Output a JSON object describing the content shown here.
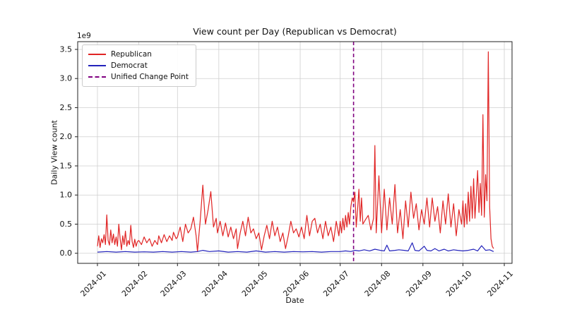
{
  "figure": {
    "title": "View count per Day (Republican vs Democrat)",
    "xlabel": "Date",
    "ylabel": "Daily View count",
    "offset_text": "1e9",
    "background_color": "#ffffff",
    "grid_color": "#cfcfcf",
    "spine_color": "#222222"
  },
  "legend": {
    "position": "upper left",
    "entries": [
      {
        "label": "Republican",
        "color": "#e02424",
        "dash": false
      },
      {
        "label": "Democrat",
        "color": "#2222bb",
        "dash": false
      },
      {
        "label": "Unified Change Point",
        "color": "#800080",
        "dash": true
      }
    ]
  },
  "chart_data": {
    "type": "line",
    "title": "View count per Day (Republican vs Democrat)",
    "xlabel": "Date",
    "ylabel": "Daily View count",
    "y_unit_multiplier": "1e9",
    "grid": true,
    "legend_position": "upper left",
    "x_epoch": "2024-01-01",
    "x_tick_labels": [
      "2024-01",
      "2024-02",
      "2024-03",
      "2024-04",
      "2024-05",
      "2024-06",
      "2024-07",
      "2024-08",
      "2024-09",
      "2024-10",
      "2024-11"
    ],
    "x_tick_days": [
      0,
      31,
      60,
      91,
      121,
      152,
      182,
      213,
      244,
      274,
      305
    ],
    "y_ticks": [
      0.0,
      0.5,
      1.0,
      1.5,
      2.0,
      2.5,
      3.0,
      3.5
    ],
    "xlim_days": [
      -14.8,
      310.8
    ],
    "ylim": [
      -0.173,
      3.633
    ],
    "change_point": {
      "label": "Unified Change Point",
      "date": "2024-07-11",
      "day": 192,
      "color": "#800080",
      "style": "dashed"
    },
    "series": [
      {
        "name": "Republican",
        "color": "#e02424",
        "points": [
          [
            0,
            0.12
          ],
          [
            1,
            0.3
          ],
          [
            2,
            0.1
          ],
          [
            3,
            0.25
          ],
          [
            4,
            0.18
          ],
          [
            5,
            0.32
          ],
          [
            6,
            0.15
          ],
          [
            7,
            0.66
          ],
          [
            8,
            0.22
          ],
          [
            9,
            0.14
          ],
          [
            10,
            0.4
          ],
          [
            11,
            0.18
          ],
          [
            12,
            0.33
          ],
          [
            13,
            0.15
          ],
          [
            14,
            0.28
          ],
          [
            15,
            0.12
          ],
          [
            16,
            0.5
          ],
          [
            17,
            0.25
          ],
          [
            18,
            0.06
          ],
          [
            19,
            0.3
          ],
          [
            20,
            0.15
          ],
          [
            21,
            0.38
          ],
          [
            22,
            0.12
          ],
          [
            23,
            0.22
          ],
          [
            24,
            0.15
          ],
          [
            25,
            0.48
          ],
          [
            26,
            0.2
          ],
          [
            27,
            0.1
          ],
          [
            28,
            0.24
          ],
          [
            29,
            0.12
          ],
          [
            30,
            0.2
          ],
          [
            31,
            0.22
          ],
          [
            33,
            0.15
          ],
          [
            35,
            0.28
          ],
          [
            37,
            0.18
          ],
          [
            39,
            0.25
          ],
          [
            41,
            0.12
          ],
          [
            43,
            0.22
          ],
          [
            45,
            0.15
          ],
          [
            46,
            0.3
          ],
          [
            48,
            0.18
          ],
          [
            50,
            0.32
          ],
          [
            52,
            0.2
          ],
          [
            54,
            0.3
          ],
          [
            56,
            0.22
          ],
          [
            57,
            0.36
          ],
          [
            59,
            0.25
          ],
          [
            60,
            0.28
          ],
          [
            62,
            0.45
          ],
          [
            64,
            0.2
          ],
          [
            66,
            0.5
          ],
          [
            68,
            0.35
          ],
          [
            70,
            0.42
          ],
          [
            72,
            0.62
          ],
          [
            74,
            0.3
          ],
          [
            75,
            0.03
          ],
          [
            77,
            0.55
          ],
          [
            79,
            1.17
          ],
          [
            81,
            0.5
          ],
          [
            83,
            0.75
          ],
          [
            85,
            1.06
          ],
          [
            87,
            0.45
          ],
          [
            89,
            0.6
          ],
          [
            90,
            0.35
          ],
          [
            92,
            0.55
          ],
          [
            94,
            0.3
          ],
          [
            96,
            0.52
          ],
          [
            98,
            0.28
          ],
          [
            100,
            0.45
          ],
          [
            102,
            0.25
          ],
          [
            104,
            0.42
          ],
          [
            105,
            0.08
          ],
          [
            107,
            0.35
          ],
          [
            109,
            0.55
          ],
          [
            111,
            0.3
          ],
          [
            113,
            0.62
          ],
          [
            115,
            0.35
          ],
          [
            117,
            0.42
          ],
          [
            119,
            0.25
          ],
          [
            121,
            0.35
          ],
          [
            123,
            0.06
          ],
          [
            125,
            0.3
          ],
          [
            127,
            0.48
          ],
          [
            129,
            0.25
          ],
          [
            131,
            0.55
          ],
          [
            133,
            0.3
          ],
          [
            135,
            0.45
          ],
          [
            137,
            0.2
          ],
          [
            139,
            0.35
          ],
          [
            141,
            0.08
          ],
          [
            143,
            0.3
          ],
          [
            145,
            0.55
          ],
          [
            147,
            0.35
          ],
          [
            149,
            0.42
          ],
          [
            151,
            0.28
          ],
          [
            153,
            0.45
          ],
          [
            155,
            0.25
          ],
          [
            157,
            0.65
          ],
          [
            159,
            0.3
          ],
          [
            161,
            0.55
          ],
          [
            163,
            0.6
          ],
          [
            165,
            0.35
          ],
          [
            167,
            0.5
          ],
          [
            169,
            0.25
          ],
          [
            171,
            0.55
          ],
          [
            173,
            0.3
          ],
          [
            175,
            0.45
          ],
          [
            177,
            0.2
          ],
          [
            179,
            0.55
          ],
          [
            181,
            0.3
          ],
          [
            182,
            0.55
          ],
          [
            183,
            0.35
          ],
          [
            184,
            0.6
          ],
          [
            185,
            0.4
          ],
          [
            186,
            0.65
          ],
          [
            187,
            0.45
          ],
          [
            188,
            0.7
          ],
          [
            189,
            0.5
          ],
          [
            190,
            0.8
          ],
          [
            191,
            0.95
          ],
          [
            192,
            0.88
          ],
          [
            193,
            1.05
          ],
          [
            194,
            0.45
          ],
          [
            195,
            0.75
          ],
          [
            196,
            1.1
          ],
          [
            197,
            0.55
          ],
          [
            198,
            0.95
          ],
          [
            199,
            0.5
          ],
          [
            201,
            0.58
          ],
          [
            203,
            0.65
          ],
          [
            205,
            0.4
          ],
          [
            207,
            0.6
          ],
          [
            208,
            1.85
          ],
          [
            209,
            0.35
          ],
          [
            211,
            1.33
          ],
          [
            213,
            0.35
          ],
          [
            215,
            1.1
          ],
          [
            217,
            0.4
          ],
          [
            219,
            0.95
          ],
          [
            221,
            0.5
          ],
          [
            223,
            1.18
          ],
          [
            225,
            0.35
          ],
          [
            227,
            0.75
          ],
          [
            229,
            0.25
          ],
          [
            231,
            0.9
          ],
          [
            233,
            0.45
          ],
          [
            235,
            1.05
          ],
          [
            237,
            0.6
          ],
          [
            239,
            0.85
          ],
          [
            241,
            0.4
          ],
          [
            243,
            0.75
          ],
          [
            245,
            0.5
          ],
          [
            247,
            0.95
          ],
          [
            249,
            0.45
          ],
          [
            251,
            0.95
          ],
          [
            253,
            0.55
          ],
          [
            255,
            0.8
          ],
          [
            257,
            0.35
          ],
          [
            259,
            0.9
          ],
          [
            261,
            0.5
          ],
          [
            263,
            1.02
          ],
          [
            265,
            0.45
          ],
          [
            267,
            0.85
          ],
          [
            269,
            0.3
          ],
          [
            271,
            0.75
          ],
          [
            273,
            0.5
          ],
          [
            274,
            0.9
          ],
          [
            275,
            0.45
          ],
          [
            276,
            0.85
          ],
          [
            277,
            0.5
          ],
          [
            278,
            1.05
          ],
          [
            279,
            0.55
          ],
          [
            280,
            1.15
          ],
          [
            281,
            0.6
          ],
          [
            282,
            1.28
          ],
          [
            283,
            0.6
          ],
          [
            284,
            1.0
          ],
          [
            285,
            1.42
          ],
          [
            286,
            0.7
          ],
          [
            287,
            1.2
          ],
          [
            288,
            0.65
          ],
          [
            289,
            2.38
          ],
          [
            290,
            0.62
          ],
          [
            291,
            1.35
          ],
          [
            292,
            0.9
          ],
          [
            293,
            3.46
          ],
          [
            294,
            0.8
          ],
          [
            295,
            0.25
          ],
          [
            296,
            0.12
          ],
          [
            297,
            0.08
          ]
        ]
      },
      {
        "name": "Democrat",
        "color": "#2222bb",
        "points": [
          [
            0,
            0.02
          ],
          [
            7,
            0.03
          ],
          [
            14,
            0.02
          ],
          [
            21,
            0.03
          ],
          [
            28,
            0.02
          ],
          [
            35,
            0.025
          ],
          [
            42,
            0.02
          ],
          [
            49,
            0.03
          ],
          [
            56,
            0.02
          ],
          [
            63,
            0.03
          ],
          [
            70,
            0.02
          ],
          [
            75,
            0.03
          ],
          [
            79,
            0.05
          ],
          [
            84,
            0.03
          ],
          [
            91,
            0.04
          ],
          [
            98,
            0.02
          ],
          [
            105,
            0.03
          ],
          [
            112,
            0.02
          ],
          [
            119,
            0.04
          ],
          [
            126,
            0.02
          ],
          [
            133,
            0.03
          ],
          [
            140,
            0.02
          ],
          [
            147,
            0.03
          ],
          [
            154,
            0.025
          ],
          [
            161,
            0.03
          ],
          [
            168,
            0.02
          ],
          [
            175,
            0.03
          ],
          [
            182,
            0.03
          ],
          [
            186,
            0.04
          ],
          [
            190,
            0.03
          ],
          [
            193,
            0.05
          ],
          [
            196,
            0.04
          ],
          [
            200,
            0.06
          ],
          [
            204,
            0.04
          ],
          [
            208,
            0.07
          ],
          [
            212,
            0.05
          ],
          [
            215,
            0.04
          ],
          [
            217,
            0.14
          ],
          [
            219,
            0.04
          ],
          [
            223,
            0.05
          ],
          [
            226,
            0.06
          ],
          [
            230,
            0.05
          ],
          [
            233,
            0.04
          ],
          [
            236,
            0.18
          ],
          [
            238,
            0.05
          ],
          [
            241,
            0.04
          ],
          [
            245,
            0.12
          ],
          [
            247,
            0.05
          ],
          [
            250,
            0.04
          ],
          [
            253,
            0.08
          ],
          [
            256,
            0.04
          ],
          [
            260,
            0.07
          ],
          [
            263,
            0.04
          ],
          [
            267,
            0.06
          ],
          [
            270,
            0.05
          ],
          [
            274,
            0.04
          ],
          [
            278,
            0.05
          ],
          [
            282,
            0.07
          ],
          [
            285,
            0.04
          ],
          [
            288,
            0.13
          ],
          [
            291,
            0.05
          ],
          [
            294,
            0.06
          ],
          [
            297,
            0.03
          ]
        ]
      }
    ]
  }
}
